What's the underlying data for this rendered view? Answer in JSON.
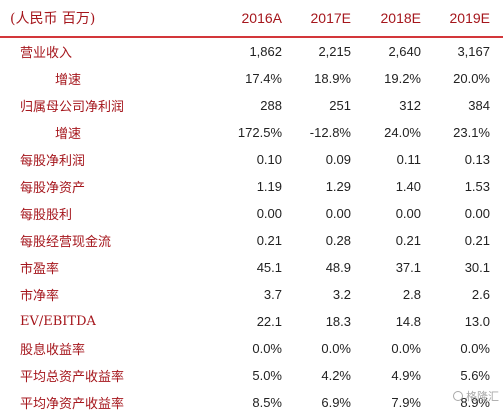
{
  "table": {
    "unit_label": "(人民币  百万)",
    "columns": [
      "2016A",
      "2017E",
      "2018E",
      "2019E"
    ],
    "rows": [
      {
        "label": "营业收入",
        "indent": false,
        "values": [
          "1,862",
          "2,215",
          "2,640",
          "3,167"
        ]
      },
      {
        "label": "增速",
        "indent": true,
        "values": [
          "17.4%",
          "18.9%",
          "19.2%",
          "20.0%"
        ]
      },
      {
        "label": "归属母公司净利润",
        "indent": false,
        "values": [
          "288",
          "251",
          "312",
          "384"
        ]
      },
      {
        "label": "增速",
        "indent": true,
        "values": [
          "172.5%",
          "-12.8%",
          "24.0%",
          "23.1%"
        ]
      },
      {
        "label": "每股净利润",
        "indent": false,
        "values": [
          "0.10",
          "0.09",
          "0.11",
          "0.13"
        ]
      },
      {
        "label": "每股净资产",
        "indent": false,
        "values": [
          "1.19",
          "1.29",
          "1.40",
          "1.53"
        ]
      },
      {
        "label": "每股股利",
        "indent": false,
        "values": [
          "0.00",
          "0.00",
          "0.00",
          "0.00"
        ]
      },
      {
        "label": "每股经营现金流",
        "indent": false,
        "values": [
          "0.21",
          "0.28",
          "0.21",
          "0.21"
        ]
      },
      {
        "label": "市盈率",
        "indent": false,
        "values": [
          "45.1",
          "48.9",
          "37.1",
          "30.1"
        ]
      },
      {
        "label": "市净率",
        "indent": false,
        "values": [
          "3.7",
          "3.2",
          "2.8",
          "2.6"
        ]
      },
      {
        "label": "EV/EBITDA",
        "indent": false,
        "values": [
          "22.1",
          "18.3",
          "14.8",
          "13.0"
        ]
      },
      {
        "label": "股息收益率",
        "indent": false,
        "values": [
          "0.0%",
          "0.0%",
          "0.0%",
          "0.0%"
        ]
      },
      {
        "label": "平均总资产收益率",
        "indent": false,
        "values": [
          "5.0%",
          "4.2%",
          "4.9%",
          "5.6%"
        ]
      },
      {
        "label": "平均净资产收益率",
        "indent": false,
        "values": [
          "8.5%",
          "6.9%",
          "7.9%",
          "8.9%"
        ]
      }
    ]
  },
  "watermark": {
    "text": "格隆汇"
  }
}
